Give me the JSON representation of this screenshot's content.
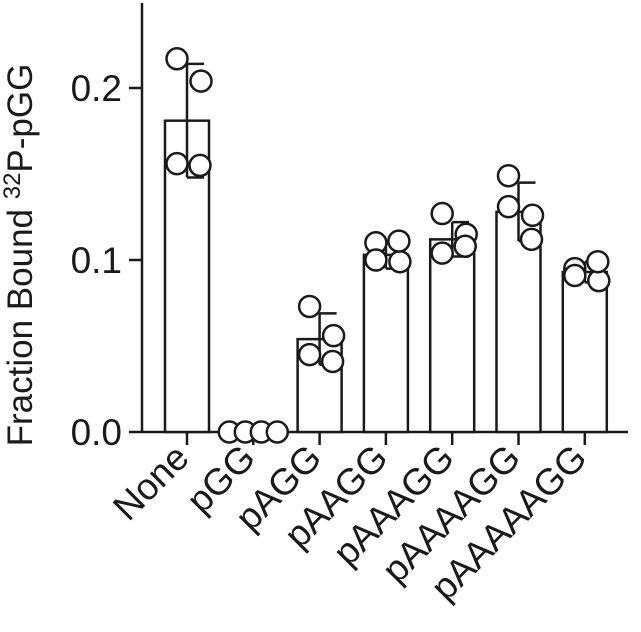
{
  "chart_data": {
    "type": "bar",
    "ylabel_prefix": "Fraction Bound ",
    "ylabel_superscript": "32",
    "ylabel_suffix": "P-pGG",
    "xlabel": "",
    "ylim": [
      0,
      0.25
    ],
    "yticks": [
      0.0,
      0.1,
      0.2
    ],
    "ytick_labels": [
      "0.0",
      "0.1",
      "0.2"
    ],
    "grid": false,
    "categories": [
      "None",
      "pGG",
      "pAGG",
      "pAAGG",
      "pAAAGG",
      "pAAAAGG",
      "pAAAAAGG"
    ],
    "values": [
      0.181,
      0.0,
      0.054,
      0.103,
      0.112,
      0.128,
      0.093
    ],
    "errors": [
      0.033,
      0.0,
      0.015,
      0.008,
      0.01,
      0.017,
      0.006
    ],
    "points": [
      [
        0.217,
        0.204,
        0.156,
        0.155
      ],
      [
        0.0,
        0.0,
        0.0,
        0.0
      ],
      [
        0.073,
        0.056,
        0.045,
        0.041
      ],
      [
        0.11,
        0.099,
        0.1,
        0.111
      ],
      [
        0.127,
        0.115,
        0.104,
        0.108
      ],
      [
        0.149,
        0.126,
        0.131,
        0.112
      ],
      [
        0.095,
        0.088,
        0.091,
        0.099
      ]
    ],
    "colors": {
      "bar_fill": "#ffffff",
      "stroke": "#1a1a1a"
    }
  }
}
